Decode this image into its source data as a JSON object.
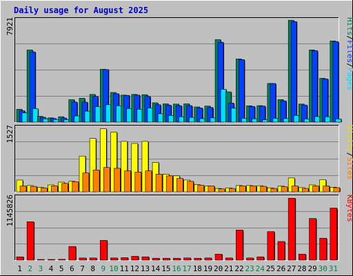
{
  "chart_data": {
    "type": "bar",
    "title": "Daily usage for August 2025",
    "colors": {
      "background": "#c0c0c0",
      "panel": "#c0c0c0",
      "grid": "#808080",
      "title": "#0000c8",
      "weekend_label": "#00804a",
      "weekday_label": "#000000",
      "hits": "#00805c",
      "files": "#0040ff",
      "pages": "#00e0ff",
      "visits": "#ffff00",
      "sites": "#ff8000",
      "kbytes": "#ff0000"
    },
    "categories": [
      "1",
      "2",
      "3",
      "4",
      "5",
      "6",
      "7",
      "8",
      "9",
      "10",
      "11",
      "12",
      "13",
      "14",
      "15",
      "16",
      "17",
      "18",
      "19",
      "20",
      "21",
      "22",
      "23",
      "24",
      "25",
      "26",
      "27",
      "28",
      "29",
      "30",
      "31"
    ],
    "weekend_days": [
      "2",
      "3",
      "9",
      "10",
      "16",
      "17",
      "23",
      "24",
      "30",
      "31"
    ],
    "panels": [
      {
        "ymax_label": "7921",
        "ymax": 7921,
        "legend": [
          {
            "text": "Hits",
            "color": "#00805c"
          },
          {
            "text": "/",
            "color": "#000000"
          },
          {
            "text": "Files",
            "color": "#0040ff"
          },
          {
            "text": "/",
            "color": "#000000"
          },
          {
            "text": "Pages",
            "color": "#00e0ff"
          }
        ],
        "series": [
          {
            "name": "Hits",
            "color": "#00805c",
            "values": [
              1000,
              5600,
              450,
              330,
              420,
              1750,
              1850,
              2150,
              4100,
              2300,
              2100,
              2150,
              2130,
              1500,
              1420,
              1400,
              1420,
              1180,
              1250,
              6400,
              2350,
              4900,
              1270,
              1280,
              3000,
              1750,
              7900,
              1400,
              5600,
              3400,
              6300
            ]
          },
          {
            "name": "Files",
            "color": "#0040ff",
            "values": [
              880,
              5450,
              380,
              290,
              320,
              1560,
              1550,
              2000,
              4080,
              2200,
              2080,
              2100,
              2000,
              1350,
              1320,
              1280,
              1280,
              1100,
              1140,
              6200,
              1480,
              4850,
              1220,
              1250,
              3000,
              1650,
              7800,
              1330,
              5550,
              3350,
              6250
            ]
          },
          {
            "name": "Pages",
            "color": "#00e0ff",
            "values": [
              720,
              1050,
              260,
              200,
              190,
              480,
              850,
              1200,
              1350,
              1270,
              1050,
              1000,
              1100,
              650,
              520,
              420,
              370,
              270,
              330,
              2550,
              1080,
              300,
              260,
              180,
              300,
              280,
              520,
              250,
              430,
              420,
              250
            ]
          }
        ]
      },
      {
        "ymax_label": "1527",
        "ymax": 1527,
        "legend": [
          {
            "text": "Visits",
            "color": "#e0e000"
          },
          {
            "text": "/",
            "color": "#000000"
          },
          {
            "text": "Sites",
            "color": "#ff8000"
          }
        ],
        "series": [
          {
            "name": "Visits",
            "color": "#ffff00",
            "values": [
              280,
              150,
              105,
              165,
              230,
              250,
              850,
              1270,
              1500,
              1420,
              1200,
              1150,
              1200,
              700,
              420,
              380,
              280,
              170,
              140,
              80,
              95,
              150,
              150,
              145,
              95,
              135,
              330,
              100,
              165,
              290,
              110
            ]
          },
          {
            "name": "Sites",
            "color": "#ff8000",
            "values": [
              140,
              130,
              90,
              140,
              200,
              240,
              450,
              520,
              580,
              560,
              500,
              470,
              500,
              420,
              380,
              320,
              250,
              155,
              140,
              70,
              80,
              140,
              140,
              130,
              80,
              120,
              140,
              80,
              140,
              140,
              100
            ]
          }
        ]
      },
      {
        "ymax_label": "1145826",
        "ymax": 1145826,
        "legend": [
          {
            "text": "KBytes",
            "color": "#ff0000"
          }
        ],
        "series": [
          {
            "name": "KBytes",
            "color": "#ff0000",
            "values": [
              60000,
              700000,
              12000,
              10000,
              15000,
              250000,
              40000,
              40000,
              360000,
              40000,
              45000,
              70000,
              60000,
              35000,
              35000,
              35000,
              40000,
              35000,
              40000,
              110000,
              40000,
              550000,
              40000,
              60000,
              520000,
              340000,
              1130000,
              110000,
              760000,
              400000,
              950000
            ]
          }
        ]
      }
    ]
  }
}
